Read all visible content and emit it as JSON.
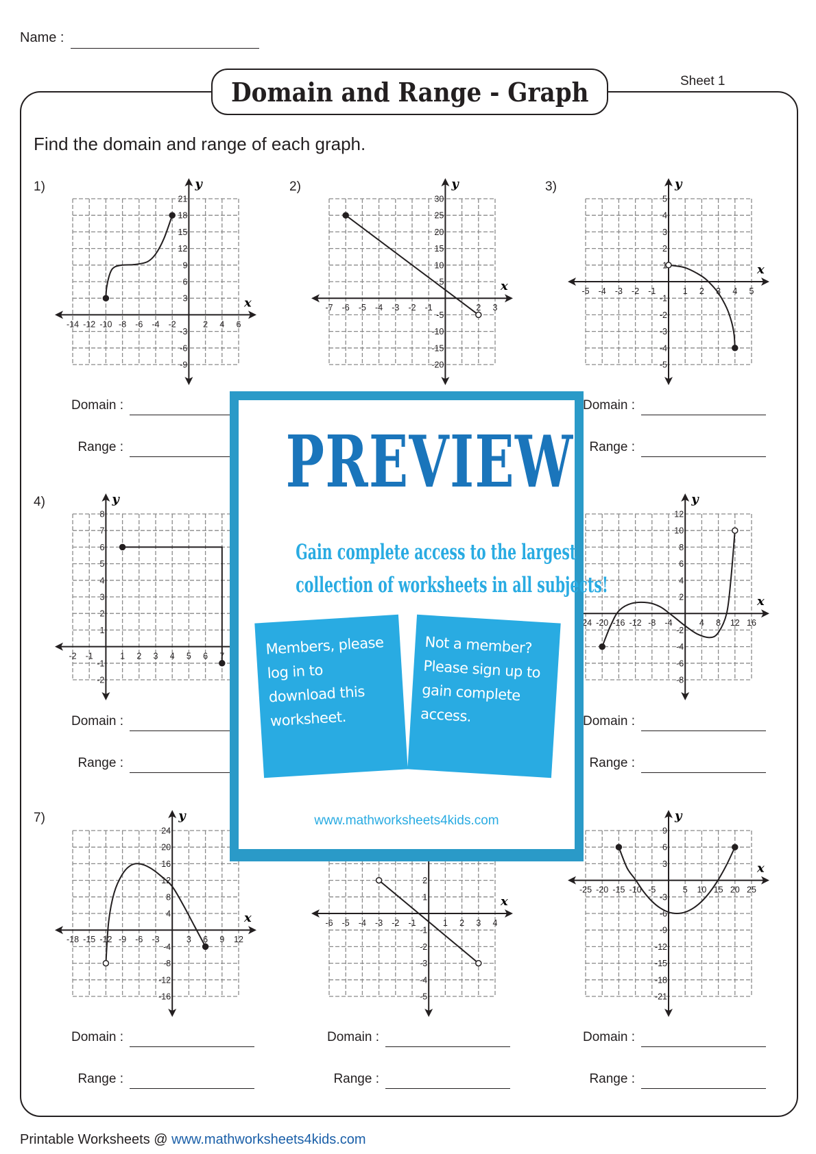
{
  "header": {
    "name_label": "Name :",
    "title": "Domain and Range - Graph",
    "sheet": "Sheet 1",
    "instruction": "Find the domain and range of each graph."
  },
  "answer_labels": {
    "domain": "Domain :",
    "range": "Range :"
  },
  "graphs": [
    {
      "num": "1)",
      "x": {
        "min": -14,
        "max": 6,
        "step": 2,
        "labels": [
          "-14",
          "-12",
          "-10",
          "-8",
          "-6",
          "-4",
          "-2",
          "2",
          "4",
          "6"
        ]
      },
      "y": {
        "min": -9,
        "max": 21,
        "step": 3,
        "labels": [
          "21",
          "18",
          "15",
          "12",
          "9",
          "6",
          "3",
          "-3",
          "-6",
          "-9"
        ]
      },
      "curve": [
        [
          -10,
          3
        ],
        [
          -9.9,
          5
        ],
        [
          -9.5,
          7.5
        ],
        [
          -9,
          8.6
        ],
        [
          -8,
          9
        ],
        [
          -6.5,
          9.1
        ],
        [
          -5,
          9.6
        ],
        [
          -4,
          11
        ],
        [
          -3,
          13.8
        ],
        [
          -2,
          18
        ]
      ],
      "endpoints": [
        {
          "x": -10,
          "y": 3,
          "closed": true
        },
        {
          "x": -2,
          "y": 18,
          "closed": true
        }
      ],
      "answers": true
    },
    {
      "num": "2)",
      "x": {
        "min": -7,
        "max": 3,
        "step": 1,
        "labels": [
          "-7",
          "-6",
          "-5",
          "-4",
          "-3",
          "-2",
          "-1",
          "2",
          "3"
        ]
      },
      "y": {
        "min": -20,
        "max": 30,
        "step": 5,
        "labels": [
          "30",
          "25",
          "20",
          "15",
          "10",
          "5",
          "-5",
          "-10",
          "-15",
          "-20"
        ]
      },
      "curve": [
        [
          -6,
          25
        ],
        [
          2,
          -5
        ]
      ],
      "straight": true,
      "endpoints": [
        {
          "x": -6,
          "y": 25,
          "closed": true
        },
        {
          "x": 2,
          "y": -5,
          "closed": false
        }
      ],
      "answers": false
    },
    {
      "num": "3)",
      "x": {
        "min": -5,
        "max": 5,
        "step": 1,
        "labels": [
          "-5",
          "-4",
          "-3",
          "-2",
          "-1",
          "1",
          "2",
          "3",
          "4",
          "5"
        ]
      },
      "y": {
        "min": -5,
        "max": 5,
        "step": 1,
        "labels": [
          "5",
          "4",
          "3",
          "2",
          "1",
          "-1",
          "-2",
          "-3",
          "-4",
          "-5"
        ]
      },
      "curve": [
        [
          0,
          1
        ],
        [
          1,
          0.84
        ],
        [
          2,
          0.33
        ],
        [
          2.5,
          -0.1
        ],
        [
          3,
          -0.69
        ],
        [
          3.5,
          -1.58
        ],
        [
          3.8,
          -2.44
        ],
        [
          3.95,
          -3.21
        ],
        [
          4,
          -4
        ]
      ],
      "endpoints": [
        {
          "x": 0,
          "y": 1,
          "closed": false
        },
        {
          "x": 4,
          "y": -4,
          "closed": true
        }
      ],
      "answers": true
    },
    {
      "num": "4)",
      "x": {
        "min": -2,
        "max": 8,
        "step": 1,
        "labels": [
          "-2",
          "-1",
          "1",
          "2",
          "3",
          "4",
          "5",
          "6",
          "7"
        ]
      },
      "y": {
        "min": -2,
        "max": 8,
        "step": 1,
        "labels": [
          "8",
          "7",
          "6",
          "5",
          "4",
          "3",
          "2",
          "1",
          "-1",
          "-2"
        ]
      },
      "curve": [
        [
          1,
          6
        ],
        [
          7,
          6
        ],
        [
          7,
          -1
        ]
      ],
      "straight": true,
      "endpoints": [
        {
          "x": 1,
          "y": 6,
          "closed": true
        },
        {
          "x": 7,
          "y": -1,
          "closed": true
        }
      ],
      "answers": true
    },
    null,
    {
      "num": "",
      "x": {
        "min": -24,
        "max": 16,
        "step": 4,
        "labels": [
          "-24",
          "-20",
          "-16",
          "-12",
          "-8",
          "-4",
          "4",
          "8",
          "12",
          "16"
        ]
      },
      "y": {
        "min": -8,
        "max": 12,
        "step": 2,
        "labels": [
          "12",
          "10",
          "8",
          "6",
          "4",
          "2",
          "-2",
          "-4",
          "-6",
          "-8"
        ]
      },
      "curve": [
        [
          -20,
          -4
        ],
        [
          -18,
          -1.5
        ],
        [
          -16,
          0.3
        ],
        [
          -13,
          1.2
        ],
        [
          -9,
          1.3
        ],
        [
          -6,
          0.8
        ],
        [
          -3,
          -0.3
        ],
        [
          0,
          -1.5
        ],
        [
          3,
          -2.5
        ],
        [
          6,
          -2.9
        ],
        [
          8,
          -2.3
        ],
        [
          10,
          0
        ],
        [
          11,
          4
        ],
        [
          12,
          10
        ]
      ],
      "endpoints": [
        {
          "x": -20,
          "y": -4,
          "closed": true
        },
        {
          "x": 12,
          "y": 10,
          "closed": false
        }
      ],
      "answers": true
    },
    {
      "num": "7)",
      "x": {
        "min": -18,
        "max": 12,
        "step": 3,
        "labels": [
          "-18",
          "-15",
          "-12",
          "-9",
          "-6",
          "-3",
          "3",
          "6",
          "9",
          "12"
        ]
      },
      "y": {
        "min": -16,
        "max": 24,
        "step": 4,
        "labels": [
          "24",
          "20",
          "16",
          "12",
          "8",
          "4",
          "-4",
          "-8",
          "-12",
          "-16"
        ]
      },
      "curve": [
        [
          -12,
          -8
        ],
        [
          -11.5,
          2
        ],
        [
          -10.5,
          9
        ],
        [
          -9,
          13.5
        ],
        [
          -7.5,
          15.6
        ],
        [
          -6,
          16
        ],
        [
          -4,
          15
        ],
        [
          -2,
          13
        ],
        [
          0,
          10.5
        ],
        [
          2,
          6
        ],
        [
          4,
          1
        ],
        [
          6,
          -4
        ]
      ],
      "endpoints": [
        {
          "x": -12,
          "y": -8,
          "closed": false
        },
        {
          "x": 6,
          "y": -4,
          "closed": true
        }
      ],
      "answers": true
    },
    {
      "num": "",
      "x": {
        "min": -6,
        "max": 4,
        "step": 1,
        "labels": [
          "-6",
          "-5",
          "-4",
          "-3",
          "-2",
          "-1",
          "1",
          "2",
          "3",
          "4"
        ]
      },
      "y": {
        "min": -5,
        "max": 5,
        "step": 1,
        "labels": [
          "2",
          "1",
          "-1",
          "-2",
          "-3",
          "-4",
          "-5"
        ]
      },
      "curve": [
        [
          -3,
          2
        ],
        [
          3,
          -3
        ]
      ],
      "straight": true,
      "endpoints": [
        {
          "x": -3,
          "y": 2,
          "closed": false
        },
        {
          "x": 3,
          "y": -3,
          "closed": false
        }
      ],
      "answers": true
    },
    {
      "num": "",
      "x": {
        "min": -25,
        "max": 25,
        "step": 5,
        "labels": [
          "-25",
          "-20",
          "-15",
          "-10",
          "-5",
          "5",
          "10",
          "15",
          "20",
          "25"
        ]
      },
      "y": {
        "min": -21,
        "max": 9,
        "step": 3,
        "labels": [
          "9",
          "6",
          "3",
          "-3",
          "-6",
          "-9",
          "-12",
          "-15",
          "-18",
          "-21"
        ]
      },
      "curve": [
        [
          -15,
          6
        ],
        [
          -12.5,
          2.23
        ],
        [
          -10,
          0.13
        ],
        [
          -7.5,
          -2.08
        ],
        [
          -5,
          -3.8
        ],
        [
          -2.5,
          -5.02
        ],
        [
          0,
          -5.76
        ],
        [
          2.5,
          -6
        ],
        [
          5,
          -5.76
        ],
        [
          7.5,
          -5.02
        ],
        [
          10,
          -3.8
        ],
        [
          12.5,
          -2.08
        ],
        [
          15,
          0.13
        ],
        [
          17.5,
          2.82
        ],
        [
          20,
          6
        ]
      ],
      "endpoints": [
        {
          "x": -15,
          "y": 6,
          "closed": true
        },
        {
          "x": 20,
          "y": 6,
          "closed": true
        }
      ],
      "answers": true
    }
  ],
  "overlay": {
    "word": "PREVIEW",
    "line1": "Gain complete access to the largest",
    "line2": "collection of worksheets in all subjects!",
    "card_members": [
      "Members, please",
      "log in to",
      "download this",
      "worksheet."
    ],
    "card_signup": [
      "Not a member?",
      "Please sign up to",
      "gain complete",
      "access."
    ],
    "url": "www.mathworksheets4kids.com",
    "colors": {
      "border": "#2a9ac8",
      "word": "#1a75bb",
      "accent": "#29abe2"
    }
  },
  "footer": {
    "prefix": "Printable Worksheets @ ",
    "link": "www.mathworksheets4kids.com"
  }
}
